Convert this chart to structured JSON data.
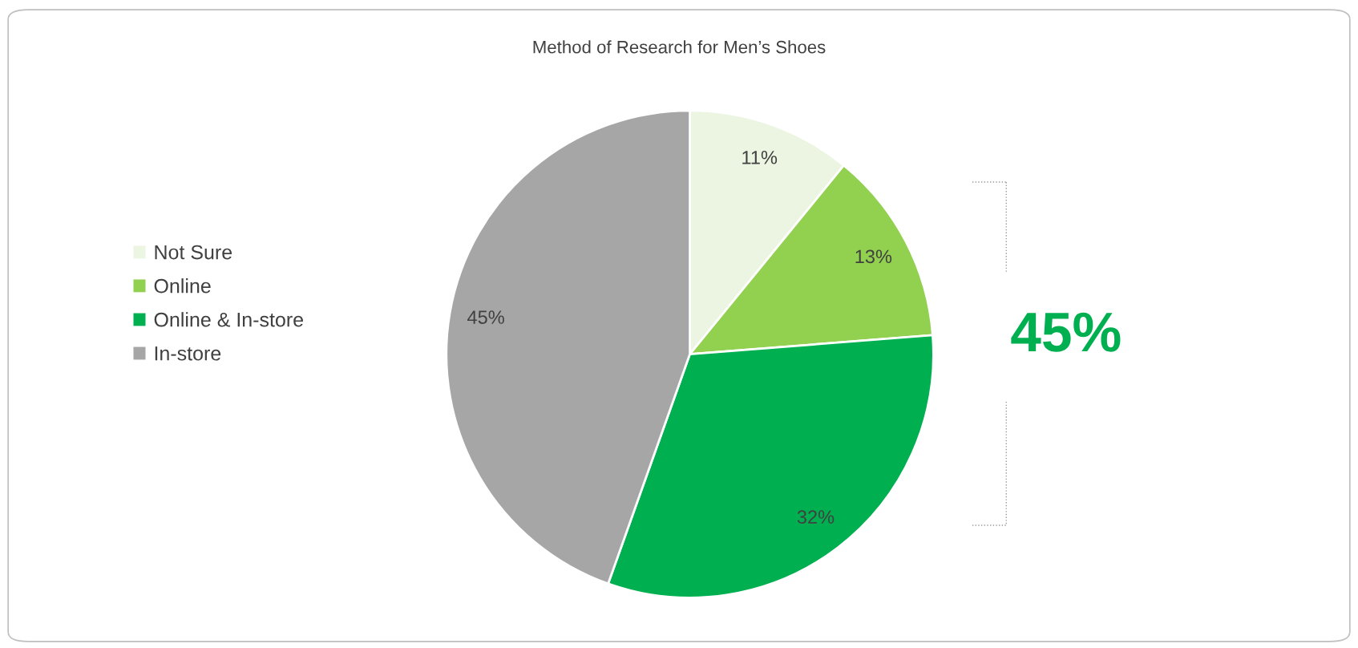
{
  "chart_data": {
    "type": "pie",
    "title": "Method of Research for Men’s Shoes",
    "categories": [
      "Not Sure",
      "Online",
      "Online & In-store",
      "In-store"
    ],
    "values": [
      11,
      13,
      32,
      45
    ],
    "colors": [
      "#ebf5e1",
      "#92d050",
      "#00b050",
      "#a6a6a6"
    ],
    "value_labels": [
      "11%",
      "13%",
      "32%",
      "45%"
    ],
    "annotations": [
      "45%"
    ],
    "legend": "left"
  }
}
